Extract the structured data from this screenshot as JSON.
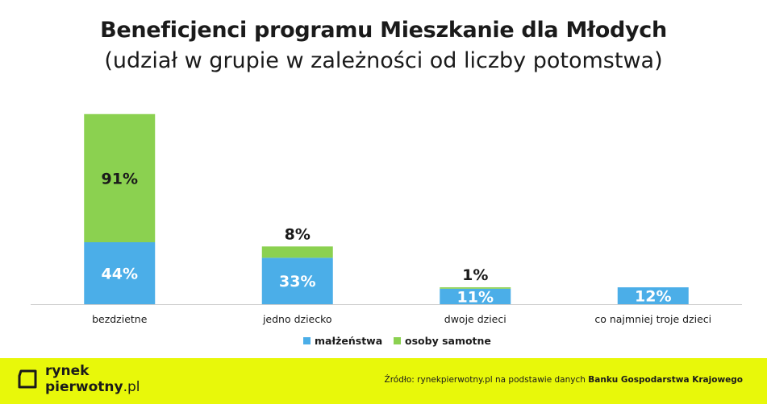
{
  "title": "Beneficjenci programu Mieszkanie dla Młodych",
  "subtitle": "(udział w grupie w zależności od liczby potomstwa)",
  "colors": {
    "married": "#4baee8",
    "single": "#8bd150",
    "text": "#1a1a1a",
    "footer": "#e8f80a",
    "axis": "#cccccc"
  },
  "chart_data": {
    "type": "bar",
    "stacked": true,
    "categories": [
      "bezdzietne",
      "jedno dziecko",
      "dwoje dzieci",
      "co najmniej troje dzieci"
    ],
    "series": [
      {
        "name": "małżeństwa",
        "values": [
          44,
          33,
          11,
          12
        ],
        "labels": [
          "44%",
          "33%",
          "11%",
          "12%"
        ]
      },
      {
        "name": "osoby samotne",
        "values": [
          91,
          8,
          1,
          0
        ],
        "labels": [
          "91%",
          "8%",
          "1%",
          ""
        ]
      }
    ],
    "legend_position": "bottom",
    "grid": false
  },
  "footer": {
    "logo_line1": "rynek",
    "logo_line2_bold": "pierwotny",
    "logo_line2_rest": ".pl",
    "source_prefix": "Źródło: rynekpierwotny.pl na podstawie danych ",
    "source_bold": "Banku Gospodarstwa Krajowego"
  }
}
